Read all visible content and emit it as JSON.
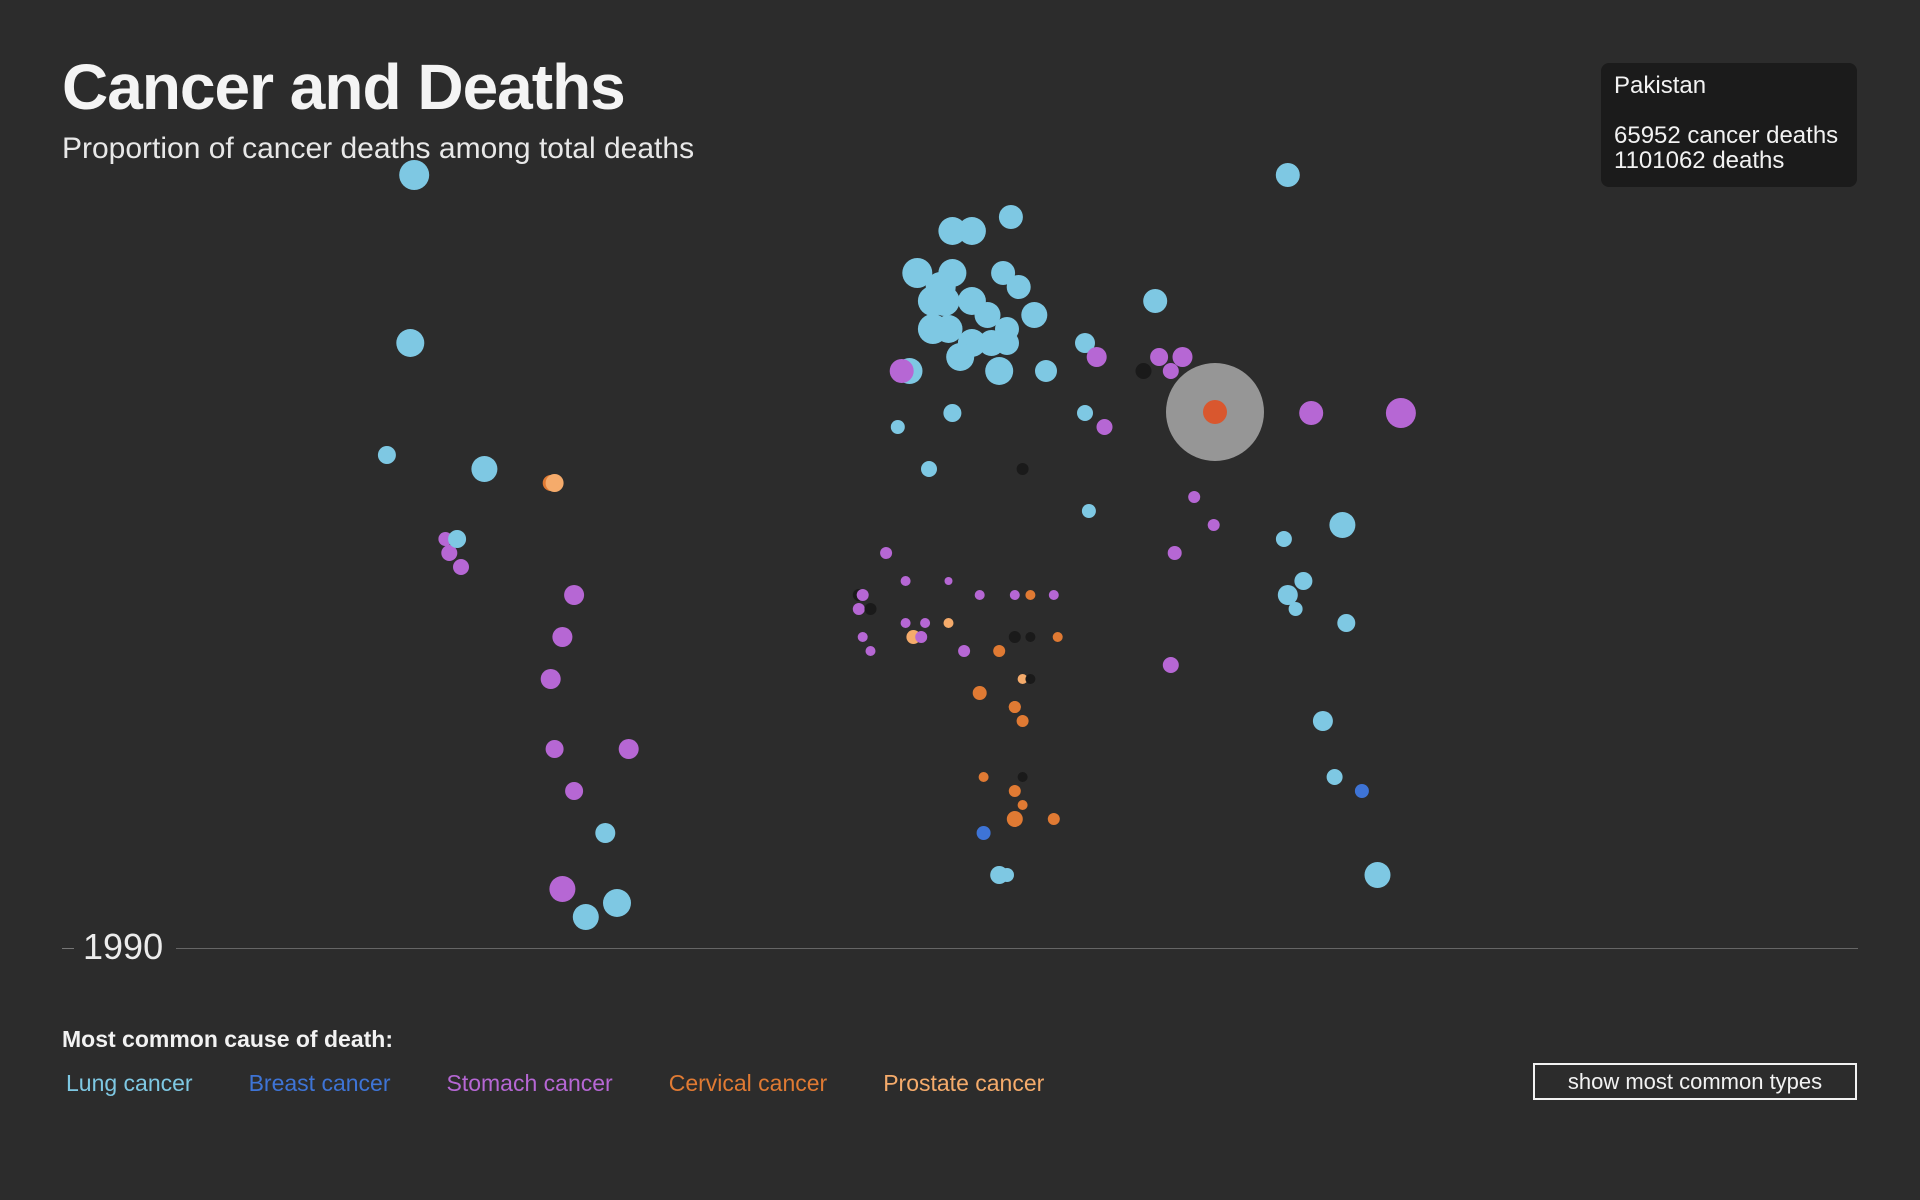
{
  "header": {
    "title": "Cancer and Deaths",
    "subtitle": "Proportion of cancer deaths among total deaths"
  },
  "tooltip": {
    "country": "Pakistan",
    "cancer_deaths": "65952 cancer deaths",
    "deaths": "1101062 deaths"
  },
  "timeline": {
    "year": "1990"
  },
  "legend": {
    "heading": "Most common cause of death:",
    "items": [
      {
        "label": "Lung cancer",
        "color": "#7ec8e3"
      },
      {
        "label": "Breast cancer",
        "color": "#3e74d6"
      },
      {
        "label": "Stomach cancer",
        "color": "#b667d4"
      },
      {
        "label": "Cervical cancer",
        "color": "#e07a33"
      },
      {
        "label": "Prostate cancer",
        "color": "#f5ab6b"
      }
    ]
  },
  "controls": {
    "toggle_label": "show most common types"
  },
  "chart_data": {
    "type": "scatter",
    "encoding": "bubble map of countries; size = proportion of cancer deaths among total deaths; color = most common cancer cause of death",
    "colors": {
      "lung": "#7ec8e3",
      "breast": "#3e74d6",
      "stomach": "#b667d4",
      "cervical": "#e07a33",
      "prostate": "#f5ab6b",
      "unknown": "#1a1a1a"
    },
    "highlight": {
      "country": "Pakistan",
      "cancer_deaths": 65952,
      "deaths": 1101062,
      "type": "cervical"
    },
    "points": [
      {
        "lon": -142,
        "lat": 63,
        "r": 15,
        "type": "lung"
      },
      {
        "lon": -143,
        "lat": 51,
        "r": 14,
        "type": "lung"
      },
      {
        "lon": -149,
        "lat": 43,
        "r": 9,
        "type": "lung"
      },
      {
        "lon": -124,
        "lat": 42,
        "r": 13,
        "type": "lung"
      },
      {
        "lon": -107,
        "lat": 41,
        "r": 8,
        "type": "cervical"
      },
      {
        "lon": -106,
        "lat": 41,
        "r": 9,
        "type": "prostate"
      },
      {
        "lon": -134,
        "lat": 37,
        "r": 7,
        "type": "stomach"
      },
      {
        "lon": -133,
        "lat": 36,
        "r": 8,
        "type": "stomach"
      },
      {
        "lon": -131,
        "lat": 37,
        "r": 9,
        "type": "lung"
      },
      {
        "lon": -130,
        "lat": 35,
        "r": 8,
        "type": "stomach"
      },
      {
        "lon": -101,
        "lat": 33,
        "r": 10,
        "type": "stomach"
      },
      {
        "lon": -104,
        "lat": 30,
        "r": 10,
        "type": "stomach"
      },
      {
        "lon": -107,
        "lat": 27,
        "r": 10,
        "type": "stomach"
      },
      {
        "lon": -106,
        "lat": 22,
        "r": 9,
        "type": "stomach"
      },
      {
        "lon": -87,
        "lat": 22,
        "r": 10,
        "type": "stomach"
      },
      {
        "lon": -101,
        "lat": 19,
        "r": 9,
        "type": "stomach"
      },
      {
        "lon": -93,
        "lat": 16,
        "r": 10,
        "type": "lung"
      },
      {
        "lon": -104,
        "lat": 12,
        "r": 13,
        "type": "stomach"
      },
      {
        "lon": -98,
        "lat": 10,
        "r": 13,
        "type": "lung"
      },
      {
        "lon": -90,
        "lat": 11,
        "r": 14,
        "type": "lung"
      },
      {
        "lon": -4,
        "lat": 59,
        "r": 14,
        "type": "lung"
      },
      {
        "lon": 1,
        "lat": 59,
        "r": 14,
        "type": "lung"
      },
      {
        "lon": 11,
        "lat": 60,
        "r": 12,
        "type": "lung"
      },
      {
        "lon": -13,
        "lat": 56,
        "r": 15,
        "type": "lung"
      },
      {
        "lon": -4,
        "lat": 56,
        "r": 14,
        "type": "lung"
      },
      {
        "lon": -7,
        "lat": 55,
        "r": 15,
        "type": "lung"
      },
      {
        "lon": -6,
        "lat": 54,
        "r": 15,
        "type": "lung"
      },
      {
        "lon": -9,
        "lat": 54,
        "r": 15,
        "type": "lung"
      },
      {
        "lon": 9,
        "lat": 56,
        "r": 12,
        "type": "lung"
      },
      {
        "lon": 13,
        "lat": 55,
        "r": 12,
        "type": "lung"
      },
      {
        "lon": 1,
        "lat": 54,
        "r": 14,
        "type": "lung"
      },
      {
        "lon": 5,
        "lat": 53,
        "r": 13,
        "type": "lung"
      },
      {
        "lon": 17,
        "lat": 53,
        "r": 13,
        "type": "lung"
      },
      {
        "lon": -9,
        "lat": 52,
        "r": 15,
        "type": "lung"
      },
      {
        "lon": -5,
        "lat": 52,
        "r": 14,
        "type": "lung"
      },
      {
        "lon": 10,
        "lat": 52,
        "r": 12,
        "type": "lung"
      },
      {
        "lon": 1,
        "lat": 51,
        "r": 14,
        "type": "lung"
      },
      {
        "lon": 6,
        "lat": 51,
        "r": 13,
        "type": "lung"
      },
      {
        "lon": 10,
        "lat": 51,
        "r": 12,
        "type": "lung"
      },
      {
        "lon": -2,
        "lat": 50,
        "r": 14,
        "type": "lung"
      },
      {
        "lon": 8,
        "lat": 49,
        "r": 14,
        "type": "lung"
      },
      {
        "lon": 20,
        "lat": 49,
        "r": 11,
        "type": "lung"
      },
      {
        "lon": -15,
        "lat": 49,
        "r": 13,
        "type": "lung"
      },
      {
        "lon": -17,
        "lat": 49,
        "r": 12,
        "type": "stomach"
      },
      {
        "lon": 30,
        "lat": 51,
        "r": 10,
        "type": "lung"
      },
      {
        "lon": 33,
        "lat": 50,
        "r": 10,
        "type": "stomach"
      },
      {
        "lon": 45,
        "lat": 49,
        "r": 8,
        "type": "unknown"
      },
      {
        "lon": 49,
        "lat": 50,
        "r": 9,
        "type": "stomach"
      },
      {
        "lon": 52,
        "lat": 49,
        "r": 8,
        "type": "stomach"
      },
      {
        "lon": 55,
        "lat": 50,
        "r": 10,
        "type": "stomach"
      },
      {
        "lon": 48,
        "lat": 54,
        "r": 12,
        "type": "lung"
      },
      {
        "lon": 82,
        "lat": 63,
        "r": 12,
        "type": "lung"
      },
      {
        "lon": -18,
        "lat": 45,
        "r": 7,
        "type": "lung"
      },
      {
        "lon": -10,
        "lat": 42,
        "r": 8,
        "type": "lung"
      },
      {
        "lon": -4,
        "lat": 46,
        "r": 9,
        "type": "lung"
      },
      {
        "lon": 30,
        "lat": 46,
        "r": 8,
        "type": "lung"
      },
      {
        "lon": 35,
        "lat": 45,
        "r": 8,
        "type": "stomach"
      },
      {
        "lon": 14,
        "lat": 42,
        "r": 6,
        "type": "unknown"
      },
      {
        "lon": 31,
        "lat": 39,
        "r": 7,
        "type": "lung"
      },
      {
        "lon": 58,
        "lat": 40,
        "r": 6,
        "type": "stomach"
      },
      {
        "lon": 63,
        "lat": 38,
        "r": 6,
        "type": "stomach"
      },
      {
        "lon": 81,
        "lat": 37,
        "r": 8,
        "type": "lung"
      },
      {
        "lon": 96,
        "lat": 38,
        "r": 13,
        "type": "lung"
      },
      {
        "lon": 88,
        "lat": 46,
        "r": 12,
        "type": "stomach"
      },
      {
        "lon": 111,
        "lat": 46,
        "r": 15,
        "type": "stomach"
      },
      {
        "lon": 53,
        "lat": 36,
        "r": 7,
        "type": "stomach"
      },
      {
        "lon": 82,
        "lat": 33,
        "r": 10,
        "type": "lung"
      },
      {
        "lon": 86,
        "lat": 34,
        "r": 9,
        "type": "lung"
      },
      {
        "lon": 84,
        "lat": 32,
        "r": 7,
        "type": "lung"
      },
      {
        "lon": 97,
        "lat": 31,
        "r": 9,
        "type": "lung"
      },
      {
        "lon": 52,
        "lat": 28,
        "r": 8,
        "type": "stomach"
      },
      {
        "lon": 91,
        "lat": 24,
        "r": 10,
        "type": "lung"
      },
      {
        "lon": 94,
        "lat": 20,
        "r": 8,
        "type": "lung"
      },
      {
        "lon": 101,
        "lat": 19,
        "r": 7,
        "type": "breast"
      },
      {
        "lon": -21,
        "lat": 36,
        "r": 6,
        "type": "stomach"
      },
      {
        "lon": -16,
        "lat": 34,
        "r": 5,
        "type": "stomach"
      },
      {
        "lon": -5,
        "lat": 34,
        "r": 4,
        "type": "stomach"
      },
      {
        "lon": 3,
        "lat": 33,
        "r": 5,
        "type": "stomach"
      },
      {
        "lon": 12,
        "lat": 33,
        "r": 5,
        "type": "stomach"
      },
      {
        "lon": 16,
        "lat": 33,
        "r": 5,
        "type": "cervical"
      },
      {
        "lon": 22,
        "lat": 33,
        "r": 5,
        "type": "stomach"
      },
      {
        "lon": -28,
        "lat": 33,
        "r": 6,
        "type": "unknown"
      },
      {
        "lon": -27,
        "lat": 33,
        "r": 6,
        "type": "stomach"
      },
      {
        "lon": -28,
        "lat": 32,
        "r": 6,
        "type": "stomach"
      },
      {
        "lon": -25,
        "lat": 32,
        "r": 6,
        "type": "unknown"
      },
      {
        "lon": -27,
        "lat": 30,
        "r": 5,
        "type": "stomach"
      },
      {
        "lon": -25,
        "lat": 29,
        "r": 5,
        "type": "stomach"
      },
      {
        "lon": -16,
        "lat": 31,
        "r": 5,
        "type": "stomach"
      },
      {
        "lon": -14,
        "lat": 30,
        "r": 7,
        "type": "prostate"
      },
      {
        "lon": -12,
        "lat": 30,
        "r": 6,
        "type": "stomach"
      },
      {
        "lon": -11,
        "lat": 31,
        "r": 5,
        "type": "stomach"
      },
      {
        "lon": -5,
        "lat": 31,
        "r": 5,
        "type": "prostate"
      },
      {
        "lon": -1,
        "lat": 29,
        "r": 6,
        "type": "stomach"
      },
      {
        "lon": 8,
        "lat": 29,
        "r": 6,
        "type": "cervical"
      },
      {
        "lon": 3,
        "lat": 26,
        "r": 7,
        "type": "cervical"
      },
      {
        "lon": 12,
        "lat": 30,
        "r": 6,
        "type": "unknown"
      },
      {
        "lon": 16,
        "lat": 30,
        "r": 5,
        "type": "unknown"
      },
      {
        "lon": 23,
        "lat": 30,
        "r": 5,
        "type": "cervical"
      },
      {
        "lon": 14,
        "lat": 27,
        "r": 5,
        "type": "prostate"
      },
      {
        "lon": 16,
        "lat": 27,
        "r": 5,
        "type": "unknown"
      },
      {
        "lon": 12,
        "lat": 25,
        "r": 6,
        "type": "cervical"
      },
      {
        "lon": 12,
        "lat": 25,
        "r": 6,
        "type": "cervical"
      },
      {
        "lon": 14,
        "lat": 24,
        "r": 6,
        "type": "cervical"
      },
      {
        "lon": 4,
        "lat": 20,
        "r": 5,
        "type": "cervical"
      },
      {
        "lon": 14,
        "lat": 20,
        "r": 5,
        "type": "unknown"
      },
      {
        "lon": 12,
        "lat": 19,
        "r": 6,
        "type": "cervical"
      },
      {
        "lon": 14,
        "lat": 18,
        "r": 5,
        "type": "cervical"
      },
      {
        "lon": 12,
        "lat": 17,
        "r": 8,
        "type": "cervical"
      },
      {
        "lon": 22,
        "lat": 17,
        "r": 6,
        "type": "cervical"
      },
      {
        "lon": 4,
        "lat": 16,
        "r": 7,
        "type": "breast"
      },
      {
        "lon": 8,
        "lat": 13,
        "r": 9,
        "type": "lung"
      },
      {
        "lon": 10,
        "lat": 13,
        "r": 7,
        "type": "lung"
      },
      {
        "lon": 105,
        "lat": 13,
        "r": 13,
        "type": "lung"
      },
      {
        "lon": 126,
        "lat": 6,
        "r": 13,
        "type": "lung"
      }
    ]
  }
}
